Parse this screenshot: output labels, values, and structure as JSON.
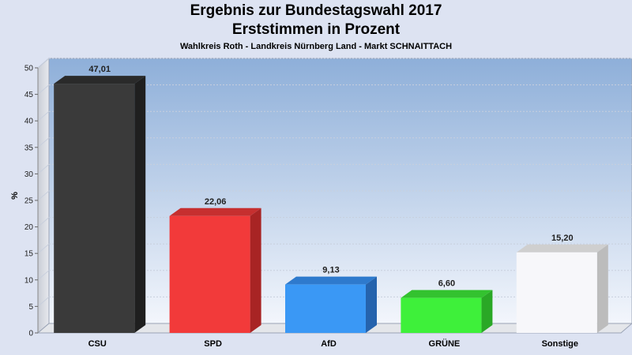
{
  "header": {
    "title": "Ergebnis zur Bundestagswahl 2017",
    "subtitle": "Erststimmen in Prozent",
    "caption": "Wahlkreis Roth - Landkreis Nürnberg Land - Markt SCHNAITTACH"
  },
  "chart_data": {
    "type": "bar",
    "title": "Ergebnis zur Bundestagswahl 2017",
    "subtitle": "Erststimmen in Prozent",
    "xlabel": "",
    "ylabel": "%",
    "ylim": [
      0,
      50
    ],
    "yticks": [
      0,
      5,
      10,
      15,
      20,
      25,
      30,
      35,
      40,
      45,
      50
    ],
    "grid": true,
    "categories": [
      "CSU",
      "SPD",
      "AfD",
      "GRÜNE",
      "Sonstige"
    ],
    "values": [
      47.01,
      22.06,
      9.13,
      6.6,
      15.2
    ],
    "value_labels": [
      "47,01",
      "22,06",
      "9,13",
      "6,60",
      "15,20"
    ],
    "colors": [
      "#3a3a3a",
      "#f23a3a",
      "#3a98f5",
      "#3ef03a",
      "#f7f7fa"
    ],
    "side_colors": [
      "#1f1f1f",
      "#a82424",
      "#2563ad",
      "#2aa826",
      "#bcbcbc"
    ],
    "top_colors": [
      "#2a2a2a",
      "#c62f2f",
      "#2e7acd",
      "#33c22f",
      "#cfcfcf"
    ]
  }
}
